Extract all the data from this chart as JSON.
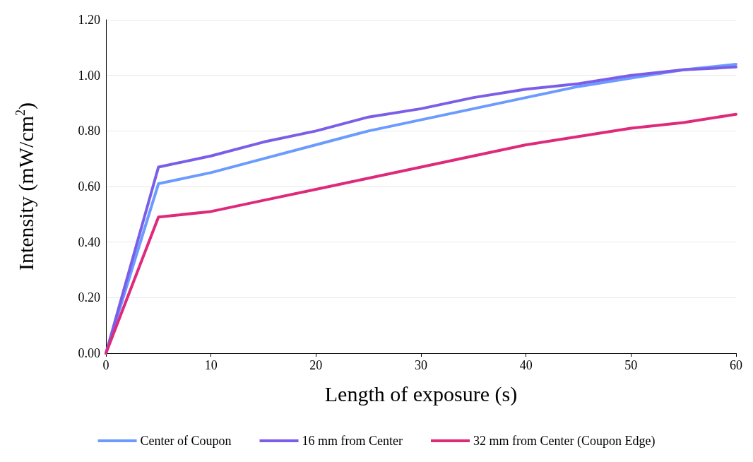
{
  "chart_data": {
    "type": "line",
    "xlabel": "Length of exposure (s)",
    "ylabel": "Intensity (mW/cm$^{2}$)",
    "x": [
      0,
      5,
      10,
      15,
      20,
      25,
      30,
      35,
      40,
      45,
      50,
      55,
      60
    ],
    "series": [
      {
        "name": "Center of Coupon",
        "color": "#6b9bff",
        "values": [
          0,
          0.61,
          0.65,
          0.7,
          0.75,
          0.8,
          0.84,
          0.88,
          0.92,
          0.96,
          0.99,
          1.02,
          1.04
        ]
      },
      {
        "name": "16 mm from Center",
        "color": "#7b5ee8",
        "values": [
          0,
          0.67,
          0.71,
          0.76,
          0.8,
          0.85,
          0.88,
          0.92,
          0.95,
          0.97,
          1.0,
          1.02,
          1.03
        ]
      },
      {
        "name": "32 mm from Center (Coupon Edge)",
        "color": "#dd2a7b",
        "values": [
          0,
          0.49,
          0.51,
          0.55,
          0.59,
          0.63,
          0.67,
          0.71,
          0.75,
          0.78,
          0.81,
          0.83,
          0.86
        ]
      }
    ],
    "xlim": [
      0,
      60
    ],
    "xticks": [
      0,
      10,
      20,
      30,
      40,
      50,
      60
    ],
    "ylim": [
      0,
      1.2
    ],
    "yticks": [
      {
        "value": 0,
        "label": "0.00"
      },
      {
        "value": 0.2,
        "label": "0.20"
      },
      {
        "value": 0.4,
        "label": "0.40"
      },
      {
        "value": 0.6,
        "label": "0.60"
      },
      {
        "value": 0.8,
        "label": "0.80"
      },
      {
        "value": 1.0,
        "label": "1.00"
      },
      {
        "value": 1.2,
        "label": "1.20"
      }
    ],
    "grid": "y",
    "legend": "bottom",
    "marker": "none",
    "line_style": "solid"
  }
}
